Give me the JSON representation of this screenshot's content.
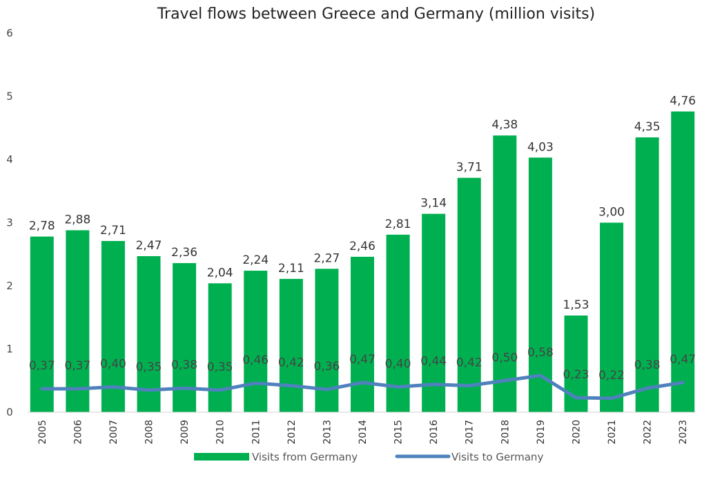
{
  "chart_data": {
    "type": "bar",
    "title": "Travel flows between Greece and Germany (million visits)",
    "categories": [
      "2005",
      "2006",
      "2007",
      "2008",
      "2009",
      "2010",
      "2011",
      "2012",
      "2013",
      "2014",
      "2015",
      "2016",
      "2017",
      "2018",
      "2019",
      "2020",
      "2021",
      "2022",
      "2023"
    ],
    "series": [
      {
        "name": "Visits from Germany",
        "kind": "bar",
        "color": "#00B050",
        "values": [
          2.78,
          2.88,
          2.71,
          2.47,
          2.36,
          2.04,
          2.24,
          2.11,
          2.27,
          2.46,
          2.81,
          3.14,
          3.71,
          4.38,
          4.03,
          1.53,
          3.0,
          4.35,
          4.76
        ],
        "labels": [
          "2,78",
          "2,88",
          "2,71",
          "2,47",
          "2,36",
          "2,04",
          "2,24",
          "2,11",
          "2,27",
          "2,46",
          "2,81",
          "3,14",
          "3,71",
          "4,38",
          "4,03",
          "1,53",
          "3,00",
          "4,35",
          "4,76"
        ]
      },
      {
        "name": "Visits to Germany",
        "kind": "line",
        "color": "#4F81BD",
        "values": [
          0.37,
          0.37,
          0.4,
          0.35,
          0.38,
          0.35,
          0.46,
          0.42,
          0.36,
          0.47,
          0.4,
          0.44,
          0.42,
          0.5,
          0.58,
          0.23,
          0.22,
          0.38,
          0.47
        ],
        "labels": [
          "0,37",
          "0,37",
          "0,40",
          "0,35",
          "0,38",
          "0,35",
          "0,46",
          "0,42",
          "0,36",
          "0,47",
          "0,40",
          "0,44",
          "0,42",
          "0,50",
          "0,58",
          "0,23",
          "0,22",
          "0,38",
          "0,47"
        ]
      }
    ],
    "ylim": [
      0,
      6
    ],
    "yticks": [
      "0",
      "1",
      "2",
      "3",
      "4",
      "5",
      "6"
    ],
    "grid": false,
    "legend": "bottom"
  }
}
